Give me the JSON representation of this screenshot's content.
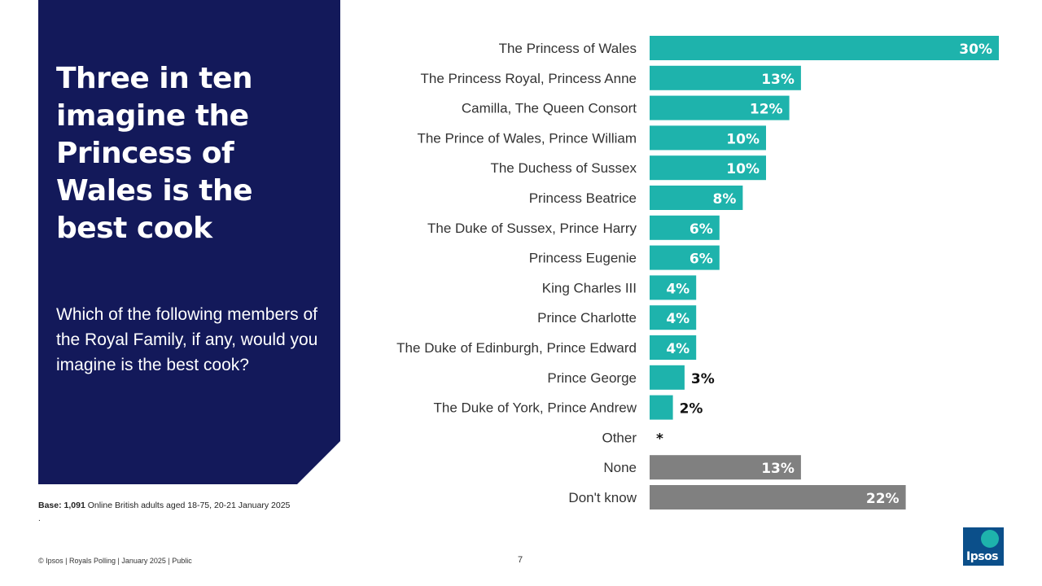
{
  "panel": {
    "headline": "Three in ten imagine the Princess of Wales is the best cook",
    "question": "Which of the following members of the Royal Family, if any, would you imagine is the best cook?"
  },
  "base": {
    "label": "Base: 1,091",
    "text": " Online British adults aged 18-75, 20-21 January 2025",
    "dot": "."
  },
  "footer": {
    "text": "© Ipsos | Royals Polling | January 2025 | Public",
    "page_number": "7"
  },
  "logo": {
    "text": "Ipsos"
  },
  "colors": {
    "panel": "#13195a",
    "teal": "#1eb3ac",
    "grey": "#808080"
  },
  "chart_data": {
    "type": "bar",
    "orientation": "horizontal",
    "categories": [
      "The Princess of Wales",
      "The Princess Royal, Princess Anne",
      "Camilla, The Queen Consort",
      "The Prince of Wales, Prince William",
      "The Duchess of Sussex",
      "Princess Beatrice",
      "The Duke of Sussex, Prince Harry",
      "Princess Eugenie",
      "King Charles III",
      "Prince Charlotte",
      "The Duke of Edinburgh, Prince Edward",
      "Prince George",
      "The Duke of York, Prince Andrew",
      "Other",
      "None",
      "Don't know"
    ],
    "values": [
      30,
      13,
      12,
      10,
      10,
      8,
      6,
      6,
      4,
      4,
      4,
      3,
      2,
      0,
      13,
      22
    ],
    "labels": [
      "30%",
      "13%",
      "12%",
      "10%",
      "10%",
      "8%",
      "6%",
      "6%",
      "4%",
      "4%",
      "4%",
      "3%",
      "2%",
      "*",
      "13%",
      "22%"
    ],
    "bar_colors": [
      "teal",
      "teal",
      "teal",
      "teal",
      "teal",
      "teal",
      "teal",
      "teal",
      "teal",
      "teal",
      "teal",
      "teal",
      "teal",
      "teal",
      "grey",
      "grey"
    ],
    "unit": "%",
    "xlim": [
      0,
      30
    ]
  }
}
